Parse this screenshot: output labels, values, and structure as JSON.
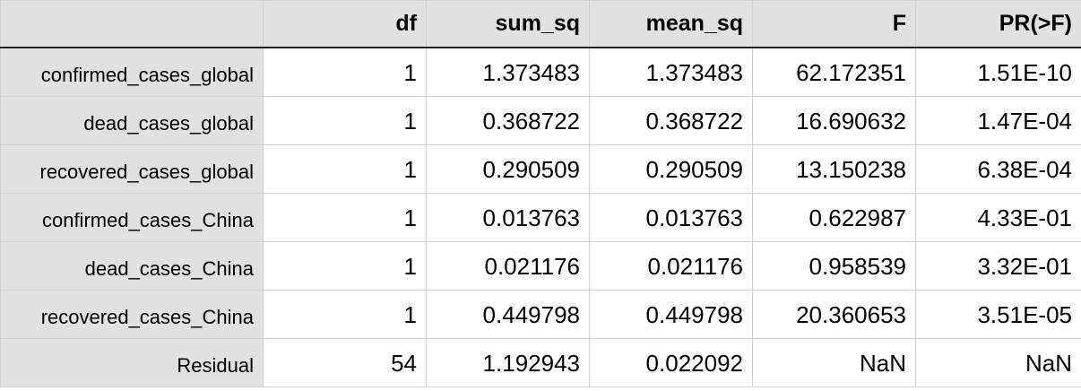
{
  "table": {
    "columns": [
      "df",
      "sum_sq",
      "mean_sq",
      "F",
      "PR(>F)"
    ],
    "rows": [
      {
        "label": "confirmed_cases_global",
        "df": "1",
        "sum_sq": "1.373483",
        "mean_sq": "1.373483",
        "F": "62.172351",
        "pr": "1.51E-10"
      },
      {
        "label": "dead_cases_global",
        "df": "1",
        "sum_sq": "0.368722",
        "mean_sq": "0.368722",
        "F": "16.690632",
        "pr": "1.47E-04"
      },
      {
        "label": "recovered_cases_global",
        "df": "1",
        "sum_sq": "0.290509",
        "mean_sq": "0.290509",
        "F": "13.150238",
        "pr": "6.38E-04"
      },
      {
        "label": "confirmed_cases_China",
        "df": "1",
        "sum_sq": "0.013763",
        "mean_sq": "0.013763",
        "F": "0.622987",
        "pr": "4.33E-01"
      },
      {
        "label": "dead_cases_China",
        "df": "1",
        "sum_sq": "0.021176",
        "mean_sq": "0.021176",
        "F": "0.958539",
        "pr": "3.32E-01"
      },
      {
        "label": "recovered_cases_China",
        "df": "1",
        "sum_sq": "0.449798",
        "mean_sq": "0.449798",
        "F": "20.360653",
        "pr": "3.51E-05"
      },
      {
        "label": "Residual",
        "df": "54",
        "sum_sq": "1.192943",
        "mean_sq": "0.022092",
        "F": "NaN",
        "pr": "NaN"
      }
    ]
  },
  "colors": {
    "header_bg": "#e1e1e1",
    "grid": "#d2d2d2",
    "header_rule": "#222222"
  }
}
